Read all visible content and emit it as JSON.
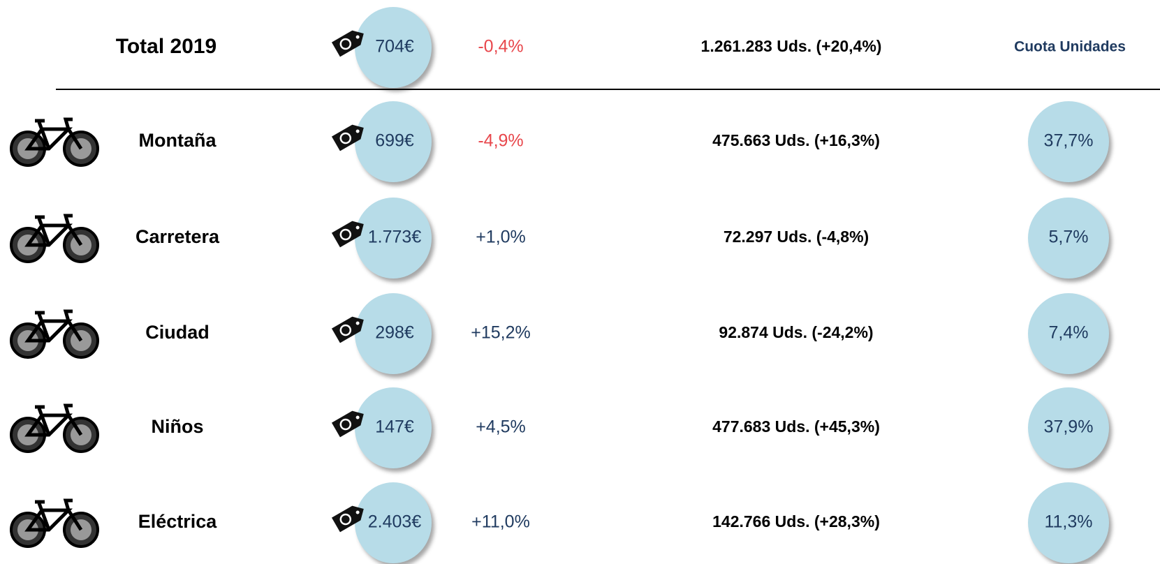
{
  "header": {
    "label": "Total 2019",
    "price": "704€",
    "change": "-0,4%",
    "units": "1.261.283 Uds. (+20,4%)",
    "share_header": "Cuota Unidades"
  },
  "rows": [
    {
      "label": "Montaña",
      "price": "699€",
      "change": "-4,9%",
      "units": "475.663 Uds. (+16,3%)",
      "share": "37,7%"
    },
    {
      "label": "Carretera",
      "price": "1.773€",
      "change": "+1,0%",
      "units": "72.297 Uds. (-4,8%)",
      "share": "5,7%"
    },
    {
      "label": "Ciudad",
      "price": "298€",
      "change": "+15,2%",
      "units": "92.874 Uds. (-24,2%)",
      "share": "7,4%"
    },
    {
      "label": "Niños",
      "price": "147€",
      "change": "+4,5%",
      "units": "477.683 Uds. (+45,3%)",
      "share": "37,9%"
    },
    {
      "label": "Eléctrica",
      "price": "2.403€",
      "change": "+11,0%",
      "units": "142.766 Uds. (+28,3%)",
      "share": "11,3%"
    }
  ]
}
